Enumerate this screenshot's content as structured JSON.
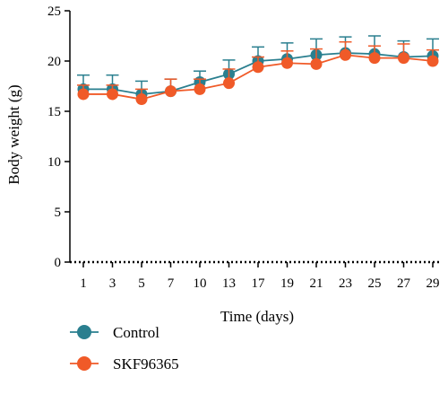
{
  "chart_data": {
    "type": "line",
    "xlabel": "Time (days)",
    "ylabel": "Body weight (g)",
    "ylim": [
      0,
      25
    ],
    "yticks": [
      "0",
      "5",
      "10",
      "15",
      "20",
      "25"
    ],
    "categories": [
      "1",
      "3",
      "5",
      "7",
      "10",
      "13",
      "17",
      "19",
      "21",
      "23",
      "25",
      "27",
      "29"
    ],
    "grid": false,
    "legend_position": "bottom-left",
    "series": [
      {
        "name": "Control",
        "color": "#2a7f8f",
        "values": [
          17.2,
          17.2,
          16.7,
          17.0,
          17.9,
          18.7,
          20.0,
          20.2,
          20.6,
          20.8,
          20.7,
          20.4,
          20.5
        ],
        "errors": [
          1.4,
          1.4,
          1.3,
          1.2,
          1.1,
          1.4,
          1.4,
          1.6,
          1.6,
          1.6,
          1.8,
          1.6,
          1.7
        ]
      },
      {
        "name": "SKF96365",
        "color": "#f05a28",
        "values": [
          16.7,
          16.7,
          16.2,
          17.0,
          17.2,
          17.8,
          19.4,
          19.8,
          19.7,
          20.6,
          20.3,
          20.3,
          20.0
        ],
        "errors": [
          0.9,
          0.9,
          1.0,
          1.2,
          1.0,
          1.4,
          1.0,
          1.2,
          1.5,
          1.3,
          1.2,
          1.4,
          1.1
        ]
      }
    ]
  }
}
